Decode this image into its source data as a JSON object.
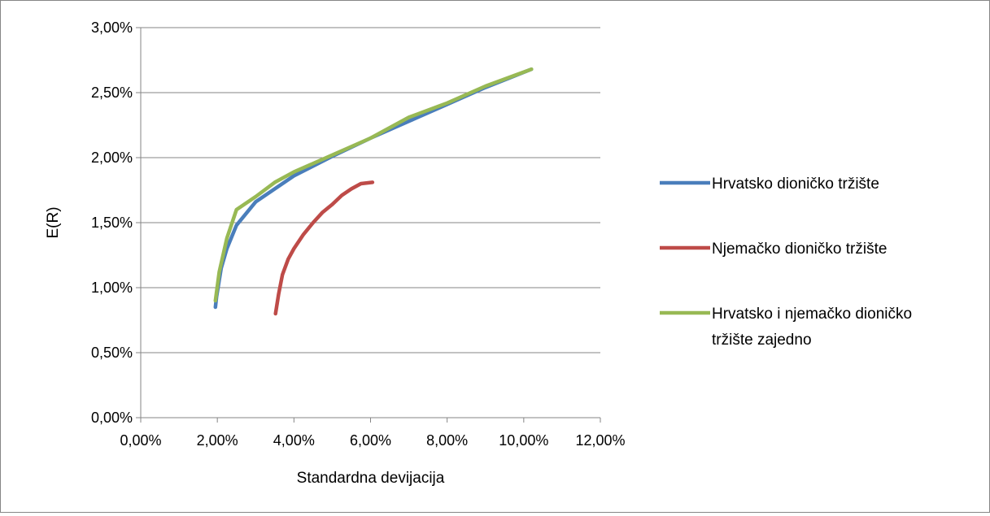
{
  "chart_data": {
    "type": "line",
    "xlabel": "Standardna devijacija",
    "ylabel": "E(R)",
    "xlim": [
      0,
      0.12
    ],
    "ylim": [
      0,
      0.03
    ],
    "x_ticks": [
      0,
      0.02,
      0.04,
      0.06,
      0.08,
      0.1,
      0.12
    ],
    "y_ticks": [
      0,
      0.005,
      0.01,
      0.015,
      0.02,
      0.025,
      0.03
    ],
    "x_tick_labels": [
      "0,00%",
      "2,00%",
      "4,00%",
      "6,00%",
      "8,00%",
      "10,00%",
      "12,00%"
    ],
    "y_tick_labels": [
      "0,00%",
      "0,50%",
      "1,00%",
      "1,50%",
      "2,00%",
      "2,50%",
      "3,00%"
    ],
    "grid": "horizontal",
    "legend_position": "right",
    "series": [
      {
        "name": "Hrvatsko dioničko tržište",
        "color": "#4a7ebb",
        "points": [
          [
            0.0195,
            0.0085
          ],
          [
            0.0198,
            0.0093
          ],
          [
            0.021,
            0.0115
          ],
          [
            0.0225,
            0.013
          ],
          [
            0.025,
            0.0148
          ],
          [
            0.03,
            0.0166
          ],
          [
            0.04,
            0.0186
          ],
          [
            0.05,
            0.0201
          ],
          [
            0.06,
            0.0215
          ],
          [
            0.07,
            0.0228
          ],
          [
            0.08,
            0.0241
          ],
          [
            0.09,
            0.0254
          ],
          [
            0.102,
            0.0268
          ]
        ]
      },
      {
        "name": "Njemačko dioničko tržište",
        "color": "#be4b48",
        "points": [
          [
            0.0352,
            0.008
          ],
          [
            0.036,
            0.0095
          ],
          [
            0.037,
            0.011
          ],
          [
            0.0385,
            0.0122
          ],
          [
            0.04,
            0.013
          ],
          [
            0.0425,
            0.0141
          ],
          [
            0.045,
            0.015
          ],
          [
            0.0475,
            0.0158
          ],
          [
            0.05,
            0.0164
          ],
          [
            0.0525,
            0.0171
          ],
          [
            0.055,
            0.0176
          ],
          [
            0.0575,
            0.018
          ],
          [
            0.0605,
            0.0181
          ]
        ]
      },
      {
        "name": "Hrvatsko i njemačko dioničko tržište zajedno",
        "color": "#98b954",
        "points": [
          [
            0.0195,
            0.009
          ],
          [
            0.0205,
            0.0112
          ],
          [
            0.0225,
            0.0138
          ],
          [
            0.025,
            0.016
          ],
          [
            0.03,
            0.017
          ],
          [
            0.035,
            0.0181
          ],
          [
            0.04,
            0.0189
          ],
          [
            0.05,
            0.0202
          ],
          [
            0.06,
            0.0215
          ],
          [
            0.07,
            0.0231
          ],
          [
            0.08,
            0.0242
          ],
          [
            0.09,
            0.0255
          ],
          [
            0.102,
            0.0268
          ]
        ]
      }
    ]
  }
}
